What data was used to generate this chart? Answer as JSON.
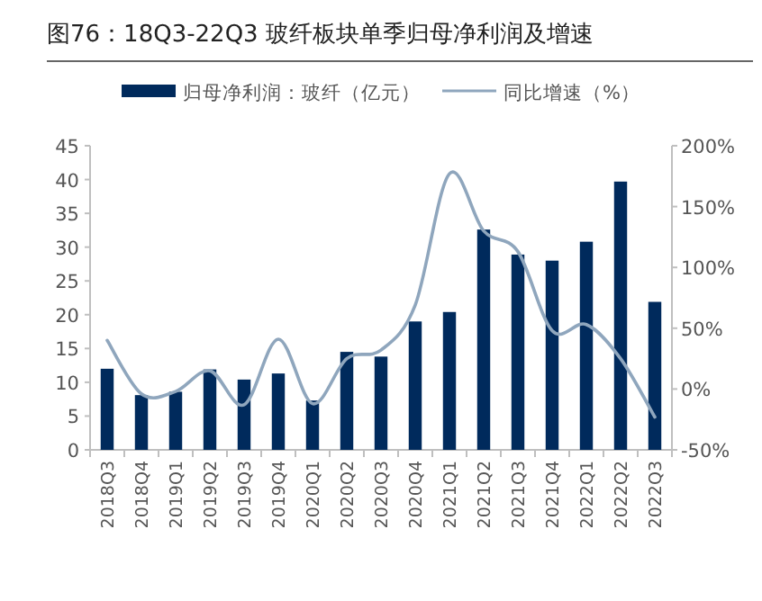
{
  "chart_data": {
    "type": "bar",
    "title": "图76：18Q3-22Q3 玻纤板块单季归母净利润及增速",
    "categories": [
      "2018Q3",
      "2018Q4",
      "2019Q1",
      "2019Q2",
      "2019Q3",
      "2019Q4",
      "2020Q1",
      "2020Q2",
      "2020Q3",
      "2020Q4",
      "2021Q1",
      "2021Q2",
      "2021Q3",
      "2021Q4",
      "2022Q1",
      "2022Q2",
      "2022Q3"
    ],
    "series": [
      {
        "name": "归母净利润：玻纤（亿元）",
        "color": "#002a5c",
        "values": [
          12.0,
          8.1,
          8.6,
          11.9,
          10.4,
          11.3,
          7.3,
          14.5,
          13.8,
          19.0,
          20.4,
          32.6,
          28.9,
          28.0,
          30.8,
          39.7,
          21.9
        ]
      },
      {
        "name": "同比增速（%）",
        "type": "line",
        "axis": "y2",
        "color": "#8fa6bd",
        "values": [
          40,
          -4,
          -2,
          15,
          -13,
          41,
          -12,
          25,
          32,
          69,
          177,
          130,
          113,
          48,
          53,
          25,
          -23
        ]
      }
    ],
    "ylim": [
      0,
      45
    ],
    "yticks": [
      0,
      5,
      10,
      15,
      20,
      25,
      30,
      35,
      40,
      45
    ],
    "y2lim": [
      -50,
      200
    ],
    "y2ticks": [
      {
        "value": -50,
        "label": "-50%"
      },
      {
        "value": 0,
        "label": "0%"
      },
      {
        "value": 50,
        "label": "50%"
      },
      {
        "value": 100,
        "label": "100%"
      },
      {
        "value": 150,
        "label": "150%"
      },
      {
        "value": 200,
        "label": "200%"
      }
    ],
    "legend": "top",
    "marker": "none",
    "line_style": "solid"
  }
}
